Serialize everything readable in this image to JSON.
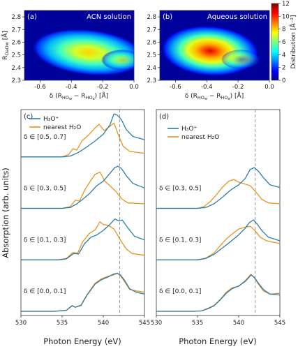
{
  "colors": {
    "h3o": "#2a7da8",
    "water": "#e8931f",
    "frame": "#333333",
    "dashed": "#888888"
  },
  "chart_data": [
    {
      "id": "a",
      "type": "heatmap",
      "panel_label": "(a)",
      "annotation": "ACN solution",
      "xlabel": "δ (R_HOw − R_HOa) [Å]",
      "ylabel": "R_OaOw [Å]",
      "xlim": [
        -0.7,
        0.0
      ],
      "ylim": [
        2.3,
        2.85
      ],
      "x_ticks": [
        "-0.6",
        "-0.4",
        "-0.2",
        "0.0"
      ],
      "y_ticks": [
        "2.3",
        "2.4",
        "2.5",
        "2.6",
        "2.7",
        "2.8"
      ],
      "peak": {
        "x": -0.35,
        "y": 2.47,
        "value": 7
      }
    },
    {
      "id": "b",
      "type": "heatmap",
      "panel_label": "(b)",
      "annotation": "Aqueous solution",
      "xlabel": "δ (R_HOw − R_HOa) [Å]",
      "ylabel": "",
      "xlim": [
        -0.7,
        0.0
      ],
      "ylim": [
        2.3,
        2.85
      ],
      "x_ticks": [
        "-0.6",
        "-0.4",
        "-0.2",
        "0.0"
      ],
      "y_ticks": [
        "2.3",
        "2.4",
        "2.5",
        "2.6",
        "2.7",
        "2.8"
      ],
      "peak": {
        "x": -0.33,
        "y": 2.48,
        "value": 12
      },
      "colorbar": {
        "label": "Distribution [Å⁻²]",
        "ticks": [
          "0",
          "2",
          "4",
          "6",
          "8",
          "10",
          "12"
        ],
        "range": [
          0,
          12
        ]
      }
    },
    {
      "id": "c",
      "type": "line",
      "panel_label": "(c)",
      "xlabel": "Photon Energy (eV)",
      "ylabel": "Absorption (arb. units)",
      "xlim": [
        530,
        545
      ],
      "x_ticks": [
        "530",
        "535",
        "540",
        "545"
      ],
      "dashed_line_x": 542,
      "legend": [
        "H₃O⁺",
        "nearest H₂O"
      ],
      "groups": [
        "δ ∈ [0.0, 0.1]",
        "δ ∈ [0.1, 0.3]",
        "δ ∈ [0.3, 0.5]",
        "δ ∈ [0.5, 0.7]"
      ]
    },
    {
      "id": "d",
      "type": "line",
      "panel_label": "(d)",
      "xlabel": "Photon Energy (eV)",
      "ylabel": "",
      "xlim": [
        530,
        545
      ],
      "x_ticks": [
        "530",
        "535",
        "540",
        "545"
      ],
      "dashed_line_x": 542,
      "legend": [
        "H₃O⁺",
        "nearest H₂O"
      ],
      "groups": [
        "δ ∈ [0.0, 0.1]",
        "δ ∈ [0.1, 0.3]",
        "δ ∈ [0.3, 0.5]"
      ]
    }
  ],
  "spectra": {
    "c": [
      {
        "h3o": [
          [
            530,
            0
          ],
          [
            534,
            0
          ],
          [
            535.5,
            0.02
          ],
          [
            536.2,
            0.12
          ],
          [
            536.6,
            0.09
          ],
          [
            537.3,
            0.13
          ],
          [
            538,
            0.35
          ],
          [
            539,
            0.6
          ],
          [
            539.8,
            0.7
          ],
          [
            540.5,
            0.75
          ],
          [
            541.2,
            0.82
          ],
          [
            541.7,
            0.84
          ],
          [
            542.1,
            0.8
          ],
          [
            542.6,
            0.68
          ],
          [
            543.2,
            0.5
          ],
          [
            544,
            0.42
          ],
          [
            545,
            0.38
          ]
        ],
        "water": [
          [
            530,
            0
          ],
          [
            534,
            0
          ],
          [
            535.5,
            0.02
          ],
          [
            536.2,
            0.13
          ],
          [
            536.6,
            0.09
          ],
          [
            537.3,
            0.14
          ],
          [
            538,
            0.36
          ],
          [
            539,
            0.62
          ],
          [
            539.8,
            0.72
          ],
          [
            540.5,
            0.77
          ],
          [
            541.2,
            0.8
          ],
          [
            541.7,
            0.84
          ],
          [
            542.1,
            0.78
          ],
          [
            542.6,
            0.65
          ],
          [
            543.2,
            0.48
          ],
          [
            544,
            0.45
          ],
          [
            545,
            0.42
          ]
        ]
      },
      {
        "h3o": [
          [
            530,
            0
          ],
          [
            534.5,
            0
          ],
          [
            535.5,
            0.02
          ],
          [
            536.4,
            0.14
          ],
          [
            537,
            0.13
          ],
          [
            537.7,
            0.35
          ],
          [
            538.5,
            0.5
          ],
          [
            539.2,
            0.55
          ],
          [
            540,
            0.65
          ],
          [
            540.8,
            0.78
          ],
          [
            541.4,
            0.9
          ],
          [
            541.9,
            0.86
          ],
          [
            542.3,
            0.88
          ],
          [
            543,
            0.7
          ],
          [
            543.8,
            0.52
          ],
          [
            545,
            0.44
          ]
        ],
        "water": [
          [
            530,
            0
          ],
          [
            534.5,
            0
          ],
          [
            535.5,
            0.03
          ],
          [
            536.3,
            0.16
          ],
          [
            536.9,
            0.15
          ],
          [
            537.5,
            0.4
          ],
          [
            538.3,
            0.58
          ],
          [
            539,
            0.66
          ],
          [
            539.6,
            0.84
          ],
          [
            540,
            0.78
          ],
          [
            540.6,
            0.76
          ],
          [
            541.3,
            0.68
          ],
          [
            542.2,
            0.4
          ],
          [
            542.8,
            0.24
          ],
          [
            543.5,
            0.14
          ],
          [
            545,
            0.1
          ]
        ]
      },
      {
        "h3o": [
          [
            530,
            0
          ],
          [
            535,
            0
          ],
          [
            536,
            0.02
          ],
          [
            536.8,
            0.1
          ],
          [
            537.5,
            0.2
          ],
          [
            538.3,
            0.32
          ],
          [
            539.2,
            0.5
          ],
          [
            540,
            0.6
          ],
          [
            540.7,
            0.75
          ],
          [
            541.4,
            0.9
          ],
          [
            541.8,
            0.93
          ],
          [
            542.2,
            0.88
          ],
          [
            542.8,
            0.72
          ],
          [
            543.6,
            0.55
          ],
          [
            545,
            0.45
          ]
        ],
        "water": [
          [
            530,
            0
          ],
          [
            535,
            0
          ],
          [
            536,
            0.04
          ],
          [
            536.6,
            0.18
          ],
          [
            537.1,
            0.16
          ],
          [
            537.8,
            0.42
          ],
          [
            538.5,
            0.62
          ],
          [
            539,
            0.75
          ],
          [
            539.6,
            0.8
          ],
          [
            540.2,
            0.6
          ],
          [
            540.8,
            0.5
          ],
          [
            541.5,
            0.38
          ],
          [
            542.3,
            0.2
          ],
          [
            543,
            0.12
          ],
          [
            545,
            0.1
          ]
        ]
      },
      {
        "h3o": [
          [
            530,
            0
          ],
          [
            535,
            0
          ],
          [
            536,
            0.02
          ],
          [
            537,
            0.1
          ],
          [
            538,
            0.22
          ],
          [
            539,
            0.35
          ],
          [
            540,
            0.5
          ],
          [
            540.8,
            0.7
          ],
          [
            541.3,
            0.95
          ],
          [
            541.7,
            0.92
          ],
          [
            542.2,
            0.82
          ],
          [
            542.8,
            0.6
          ],
          [
            543.6,
            0.45
          ],
          [
            545,
            0.38
          ]
        ],
        "water": [
          [
            530,
            0
          ],
          [
            535,
            0
          ],
          [
            535.8,
            0.05
          ],
          [
            536.3,
            0.18
          ],
          [
            536.8,
            0.15
          ],
          [
            537.4,
            0.35
          ],
          [
            538.2,
            0.48
          ],
          [
            538.9,
            0.62
          ],
          [
            539.5,
            0.72
          ],
          [
            540.1,
            0.58
          ],
          [
            540.7,
            0.66
          ],
          [
            541.3,
            0.75
          ],
          [
            541.8,
            0.5
          ],
          [
            542.4,
            0.24
          ],
          [
            543.2,
            0.12
          ],
          [
            545,
            0.08
          ]
        ]
      }
    ],
    "d": [
      {
        "h3o": [
          [
            530,
            0
          ],
          [
            534.5,
            0
          ],
          [
            535.5,
            0.01
          ],
          [
            536.3,
            0.06
          ],
          [
            537,
            0.12
          ],
          [
            537.8,
            0.26
          ],
          [
            538.5,
            0.4
          ],
          [
            539.2,
            0.5
          ],
          [
            540,
            0.56
          ],
          [
            540.8,
            0.66
          ],
          [
            541.5,
            0.8
          ],
          [
            541.9,
            0.75
          ],
          [
            542.4,
            0.62
          ],
          [
            543,
            0.48
          ],
          [
            543.8,
            0.38
          ],
          [
            545,
            0.36
          ]
        ],
        "water": [
          [
            530,
            0
          ],
          [
            534.5,
            0
          ],
          [
            535.5,
            0.01
          ],
          [
            536.3,
            0.07
          ],
          [
            537,
            0.13
          ],
          [
            537.8,
            0.27
          ],
          [
            538.5,
            0.42
          ],
          [
            539.2,
            0.52
          ],
          [
            540,
            0.55
          ],
          [
            540.8,
            0.68
          ],
          [
            541.5,
            0.82
          ],
          [
            541.9,
            0.74
          ],
          [
            542.4,
            0.6
          ],
          [
            543,
            0.45
          ],
          [
            543.8,
            0.38
          ],
          [
            545,
            0.4
          ]
        ]
      },
      {
        "h3o": [
          [
            530,
            0
          ],
          [
            535,
            0
          ],
          [
            536,
            0.03
          ],
          [
            537,
            0.12
          ],
          [
            538,
            0.26
          ],
          [
            539,
            0.4
          ],
          [
            540,
            0.55
          ],
          [
            540.8,
            0.7
          ],
          [
            541.3,
            0.82
          ],
          [
            541.8,
            0.88
          ],
          [
            542.2,
            0.8
          ],
          [
            542.8,
            0.65
          ],
          [
            543.6,
            0.5
          ],
          [
            545,
            0.42
          ]
        ],
        "water": [
          [
            530,
            0
          ],
          [
            535,
            0
          ],
          [
            536,
            0.04
          ],
          [
            537,
            0.15
          ],
          [
            537.8,
            0.32
          ],
          [
            538.6,
            0.48
          ],
          [
            539.3,
            0.58
          ],
          [
            540,
            0.68
          ],
          [
            540.8,
            0.72
          ],
          [
            541.4,
            0.74
          ],
          [
            542,
            0.64
          ],
          [
            542.6,
            0.5
          ],
          [
            543.4,
            0.42
          ],
          [
            545,
            0.36
          ]
        ]
      },
      {
        "h3o": [
          [
            530,
            0
          ],
          [
            535,
            0
          ],
          [
            536,
            0.02
          ],
          [
            537,
            0.1
          ],
          [
            538,
            0.24
          ],
          [
            539,
            0.4
          ],
          [
            540,
            0.52
          ],
          [
            540.8,
            0.66
          ],
          [
            541.4,
            0.86
          ],
          [
            541.9,
            0.9
          ],
          [
            542.4,
            0.82
          ],
          [
            543,
            0.68
          ],
          [
            543.8,
            0.52
          ],
          [
            545,
            0.46
          ]
        ],
        "water": [
          [
            530,
            0
          ],
          [
            535,
            0
          ],
          [
            535.8,
            0.04
          ],
          [
            536.6,
            0.16
          ],
          [
            537.3,
            0.3
          ],
          [
            538,
            0.46
          ],
          [
            538.8,
            0.6
          ],
          [
            539.4,
            0.64
          ],
          [
            540,
            0.58
          ],
          [
            540.7,
            0.54
          ],
          [
            541.4,
            0.5
          ],
          [
            542.1,
            0.36
          ],
          [
            542.8,
            0.2
          ],
          [
            543.6,
            0.12
          ],
          [
            545,
            0.1
          ]
        ]
      }
    ]
  }
}
